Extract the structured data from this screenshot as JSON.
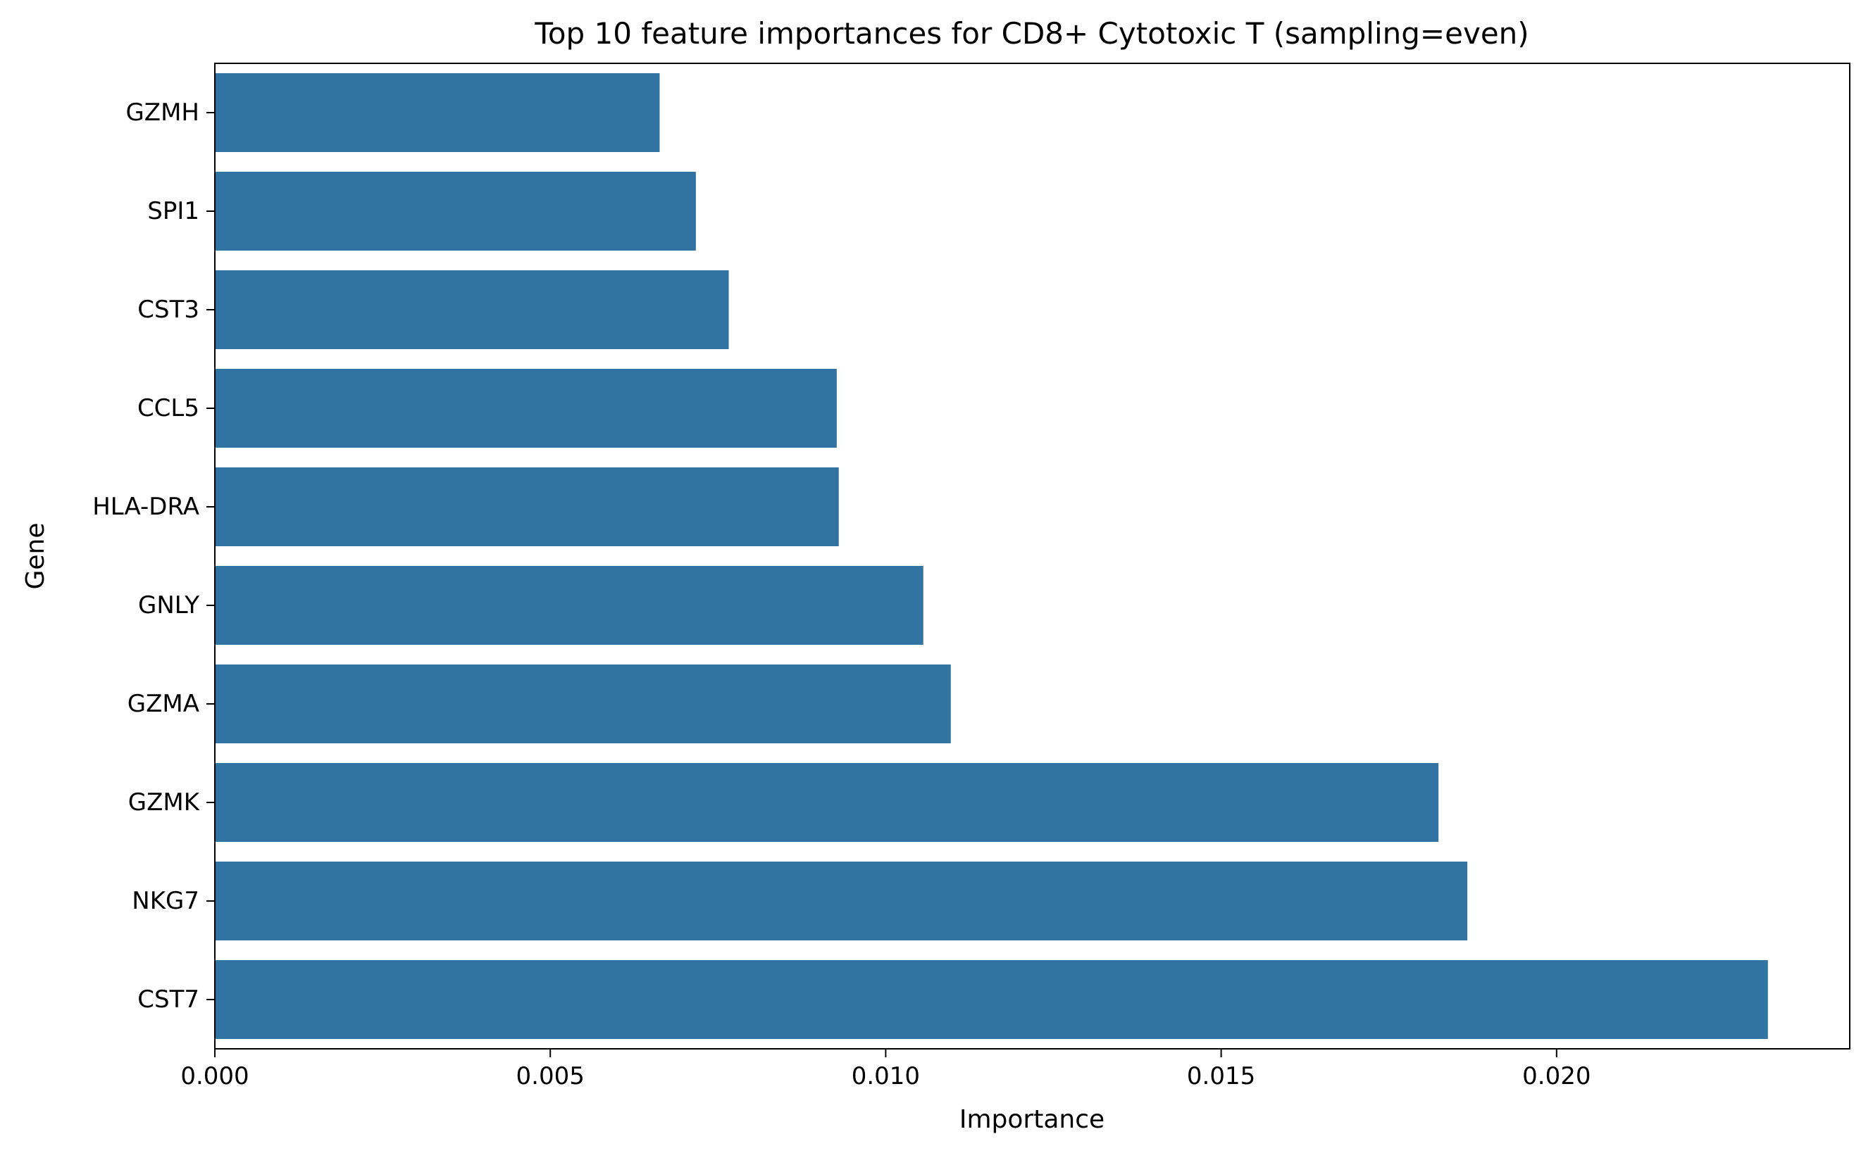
{
  "chart_data": {
    "type": "bar",
    "orientation": "horizontal",
    "title": "Top 10 feature importances for CD8+ Cytotoxic T (sampling=even)",
    "xlabel": "Importance",
    "ylabel": "Gene",
    "categories": [
      "GZMH",
      "SPI1",
      "CST3",
      "CCL5",
      "HLA-DRA",
      "GNLY",
      "GZMA",
      "GZMK",
      "NKG7",
      "CST7"
    ],
    "values": [
      0.00663,
      0.00717,
      0.00766,
      0.00927,
      0.0093,
      0.01056,
      0.01097,
      0.01824,
      0.01867,
      0.02315
    ],
    "xlim": [
      0,
      0.02437
    ],
    "xticks": [
      0.0,
      0.005,
      0.01,
      0.015,
      0.02
    ],
    "xtick_labels": [
      "0.000",
      "0.005",
      "0.010",
      "0.015",
      "0.020"
    ],
    "bar_color": "#3274a1",
    "grid": false,
    "legend": "none"
  }
}
